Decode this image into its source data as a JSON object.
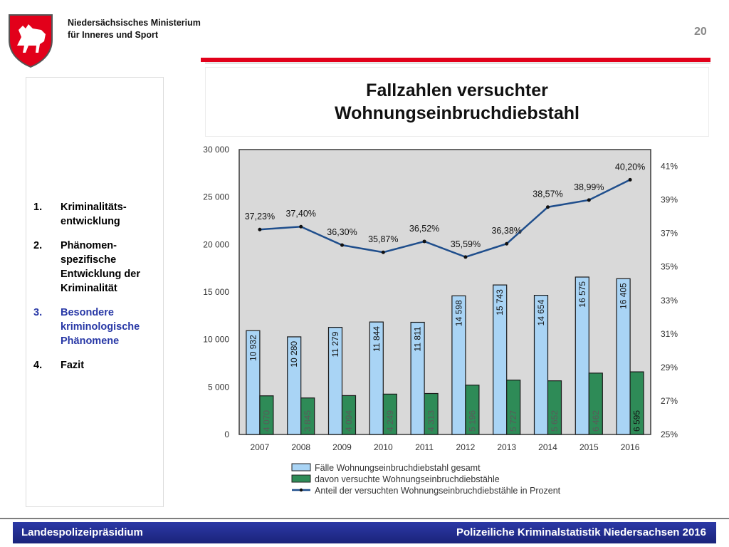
{
  "header": {
    "ministry_line1": "Niedersächsisches Ministerium",
    "ministry_line2": "für Inneres und Sport",
    "page_number": "20"
  },
  "colors": {
    "accent_red": "#e2001a",
    "footer_blue": "#1f2a8c",
    "bar_total": "#a9d4f5",
    "bar_attempted": "#2e8b57",
    "line_percent": "#1f4e8c"
  },
  "agenda": {
    "items": [
      {
        "num": "1.",
        "text": "Kriminalitäts-entwicklung"
      },
      {
        "num": "2.",
        "text": "Phänomen-spezifische Entwicklung der Kriminalität"
      },
      {
        "num": "3.",
        "text": "Besondere kriminologische Phänomene"
      },
      {
        "num": "4.",
        "text": "Fazit"
      }
    ]
  },
  "slide": {
    "title_line1": "Fallzahlen versuchter",
    "title_line2": "Wohnungseinbruchdiebstahl"
  },
  "chart_data": {
    "type": "bar",
    "categories": [
      "2007",
      "2008",
      "2009",
      "2010",
      "2011",
      "2012",
      "2013",
      "2014",
      "2015",
      "2016"
    ],
    "series": [
      {
        "name": "Fälle Wohnungseinbruchdiebstahl gesamt",
        "type": "bar",
        "axis": "left",
        "values": [
          10932,
          10280,
          11279,
          11844,
          11811,
          14598,
          15743,
          14654,
          16575,
          16405
        ],
        "labels": [
          "10 932",
          "10 280",
          "11 279",
          "11 844",
          "11 811",
          "14 598",
          "15 743",
          "14 654",
          "16 575",
          "16 405"
        ]
      },
      {
        "name": "davon versuchte Wohnungseinbruchdiebstähle",
        "type": "bar",
        "axis": "left",
        "values": [
          4070,
          3845,
          4094,
          4249,
          4313,
          5196,
          5727,
          5652,
          6462,
          6595
        ],
        "labels": [
          "4 070",
          "3 845",
          "4 094",
          "4 249",
          "4 313",
          "5 196",
          "5 727",
          "5 652",
          "6 462",
          "6 595"
        ]
      },
      {
        "name": "Anteil der versuchten Wohnungseinbruchdiebstähle in Prozent",
        "type": "line",
        "axis": "right",
        "values": [
          37.23,
          37.4,
          36.3,
          35.87,
          36.52,
          35.59,
          36.38,
          38.57,
          38.99,
          40.2
        ],
        "labels": [
          "37,23%",
          "37,40%",
          "36,30%",
          "35,87%",
          "36,52%",
          "35,59%",
          "36,38%",
          "38,57%",
          "38,99%",
          "40,20%"
        ]
      }
    ],
    "y_left": {
      "lim": [
        0,
        30000
      ],
      "ticks": [
        0,
        5000,
        10000,
        15000,
        20000,
        25000,
        30000
      ],
      "tick_labels": [
        "0",
        "5 000",
        "10 000",
        "15 000",
        "20 000",
        "25 000",
        "30 000"
      ]
    },
    "y_right": {
      "lim": [
        25,
        42
      ],
      "ticks": [
        25,
        27,
        29,
        31,
        33,
        35,
        37,
        39,
        41
      ],
      "tick_labels": [
        "25%",
        "27%",
        "29%",
        "31%",
        "33%",
        "35%",
        "37%",
        "39%",
        "41%"
      ]
    },
    "grid": false,
    "legend_position": "bottom"
  },
  "footer": {
    "left": "Landespolizeipräsidium",
    "right": "Polizeiliche Kriminalstatistik Niedersachsen 2016"
  }
}
